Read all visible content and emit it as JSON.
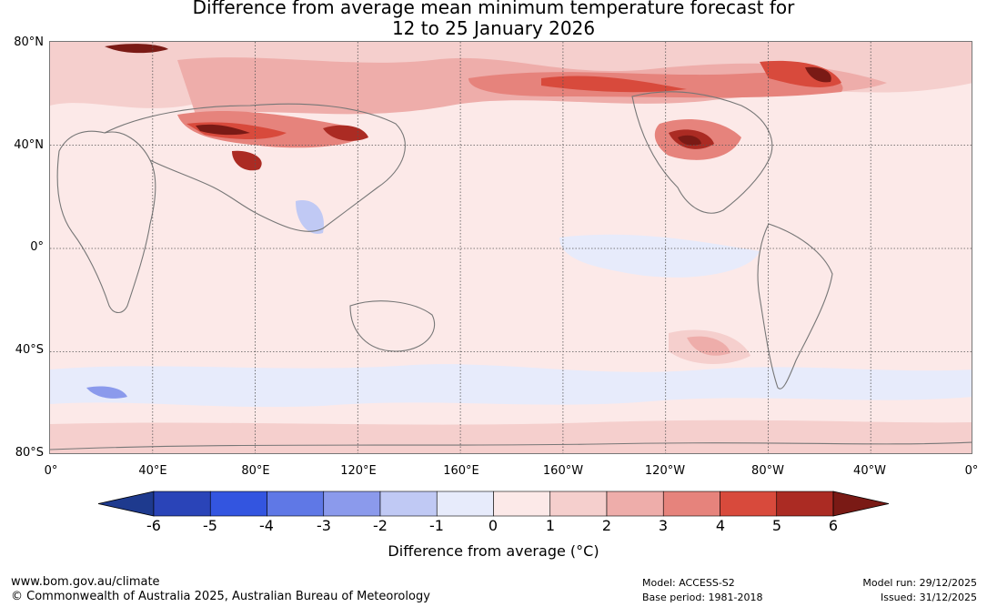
{
  "title": {
    "line1": "Difference from average mean minimum temperature forecast for",
    "line2": "12 to 25 January 2026"
  },
  "map": {
    "lat_labels": [
      "80°N",
      "40°N",
      "0°",
      "40°S",
      "80°S"
    ],
    "lon_labels": [
      "0°",
      "40°E",
      "80°E",
      "120°E",
      "160°E",
      "160°W",
      "120°W",
      "80°W",
      "40°W",
      "0°"
    ]
  },
  "colorbar": {
    "title": "Difference from average (°C)",
    "ticks": [
      "-6",
      "-5",
      "-4",
      "-3",
      "-2",
      "-1",
      "0",
      "1",
      "2",
      "3",
      "4",
      "5",
      "6"
    ],
    "colors": [
      "#1e3a8e",
      "#2a44b8",
      "#3355e0",
      "#5f78e6",
      "#8b9aec",
      "#c0c9f4",
      "#e7ebfb",
      "#fce9e8",
      "#f5cfcd",
      "#eeadaa",
      "#e6837c",
      "#d84a3c",
      "#ab2b23",
      "#7a1a15"
    ]
  },
  "footer": {
    "url": "www.bom.gov.au/climate",
    "copyright": "© Commonwealth of Australia 2025, Australian Bureau of Meteorology",
    "model": "Model: ACCESS-S2",
    "base_period": "Base period: 1981-2018",
    "model_run": "Model run: 29/12/2025",
    "issued": "Issued: 31/12/2025"
  }
}
